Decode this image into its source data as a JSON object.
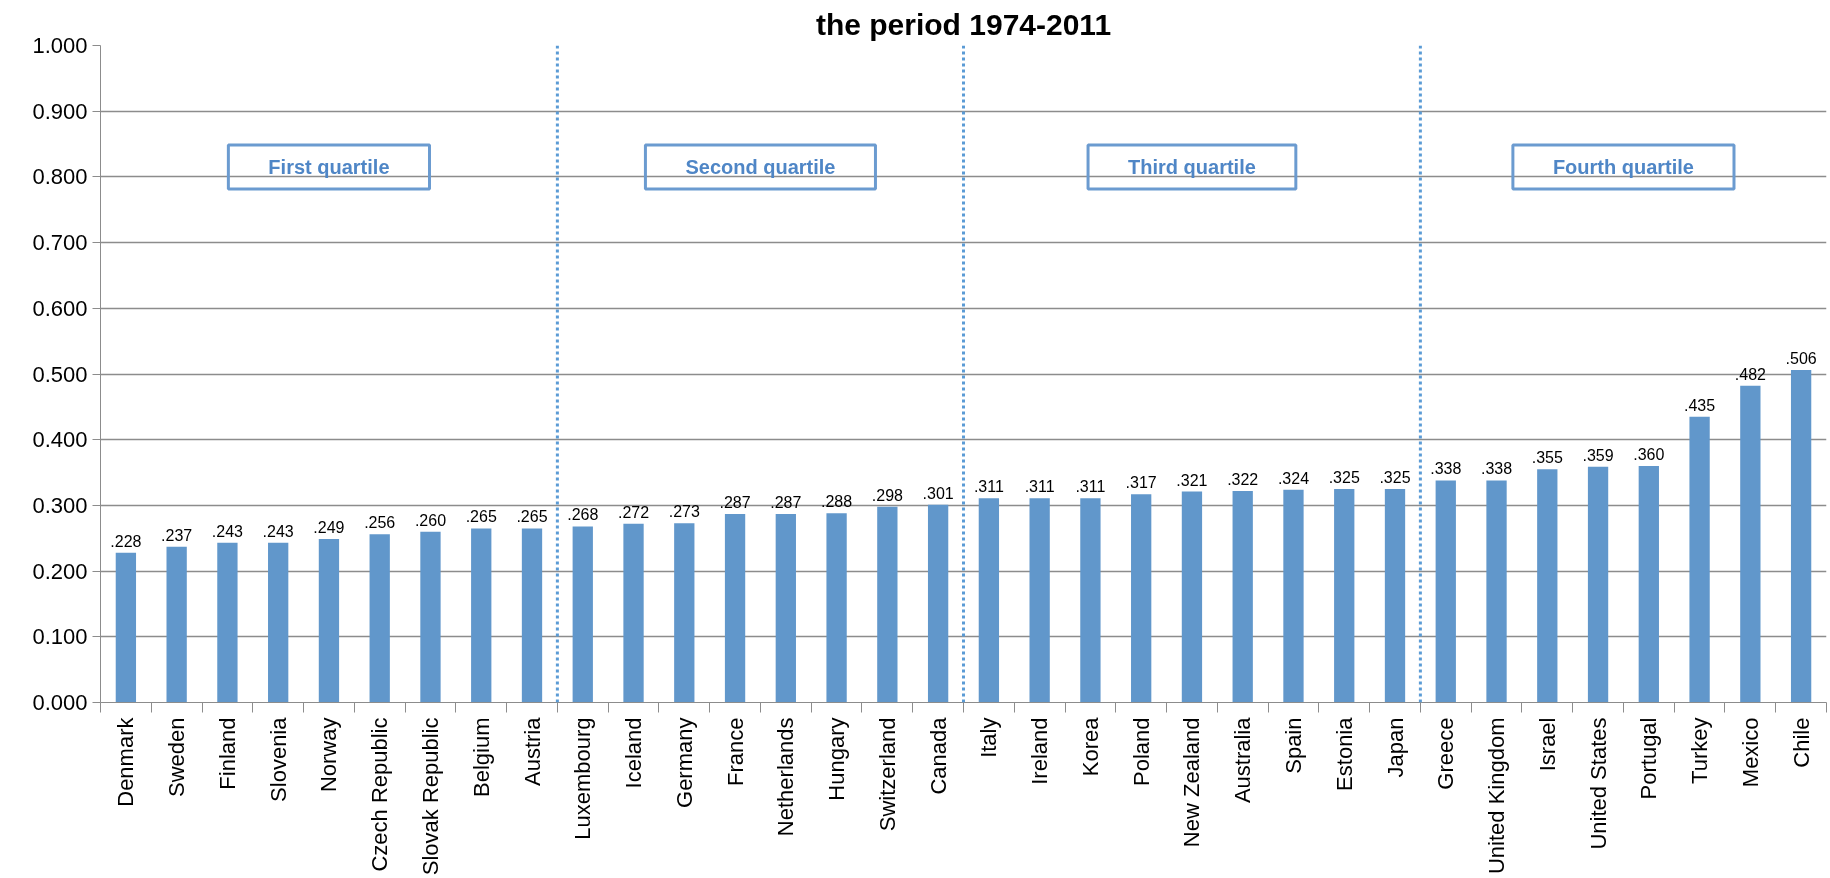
{
  "chart_data": {
    "type": "bar",
    "title": "the period 1974-2011",
    "categories": [
      "Denmark",
      "Sweden",
      "Finland",
      "Slovenia",
      "Norway",
      "Czech Republic",
      "Slovak Republic",
      "Belgium",
      "Austria",
      "Luxembourg",
      "Iceland",
      "Germany",
      "France",
      "Netherlands",
      "Hungary",
      "Switzerland",
      "Canada",
      "Italy",
      "Ireland",
      "Korea",
      "Poland",
      "New Zealand",
      "Australia",
      "Spain",
      "Estonia",
      "Japan",
      "Greece",
      "United Kingdom",
      "Israel",
      "United States",
      "Portugal",
      "Turkey",
      "Mexico",
      "Chile"
    ],
    "values": [
      0.228,
      0.237,
      0.243,
      0.243,
      0.249,
      0.256,
      0.26,
      0.265,
      0.265,
      0.268,
      0.272,
      0.273,
      0.287,
      0.287,
      0.288,
      0.298,
      0.301,
      0.311,
      0.311,
      0.311,
      0.317,
      0.321,
      0.322,
      0.324,
      0.325,
      0.325,
      0.338,
      0.338,
      0.355,
      0.359,
      0.36,
      0.435,
      0.482,
      0.506
    ],
    "value_labels": [
      ".228",
      ".237",
      ".243",
      ".243",
      ".249",
      ".256",
      ".260",
      ".265",
      ".265",
      ".268",
      ".272",
      ".273",
      ".287",
      ".287",
      ".288",
      ".298",
      ".301",
      ".311",
      ".311",
      ".311",
      ".317",
      ".321",
      ".322",
      ".324",
      ".325",
      ".325",
      ".338",
      ".338",
      ".355",
      ".359",
      ".360",
      ".435",
      ".482",
      ".506"
    ],
    "color": "#6197cb",
    "ylim": [
      0,
      1.0
    ],
    "yticks": [
      {
        "value": 0,
        "label": "0.000"
      },
      {
        "value": 0.1,
        "label": "0.100"
      },
      {
        "value": 0.2,
        "label": "0.200"
      },
      {
        "value": 0.3,
        "label": "0.300"
      },
      {
        "value": 0.4,
        "label": "0.400"
      },
      {
        "value": 0.5,
        "label": "0.500"
      },
      {
        "value": 0.6,
        "label": "0.600"
      },
      {
        "value": 0.7,
        "label": "0.700"
      },
      {
        "value": 0.8,
        "label": "0.800"
      },
      {
        "value": 0.9,
        "label": "0.900"
      },
      {
        "value": 1.0,
        "label": "1.000"
      }
    ],
    "grid": "y",
    "annotations": [
      "First quartile",
      "Second quartile",
      "Third quartile",
      "Fourth quartile"
    ]
  }
}
